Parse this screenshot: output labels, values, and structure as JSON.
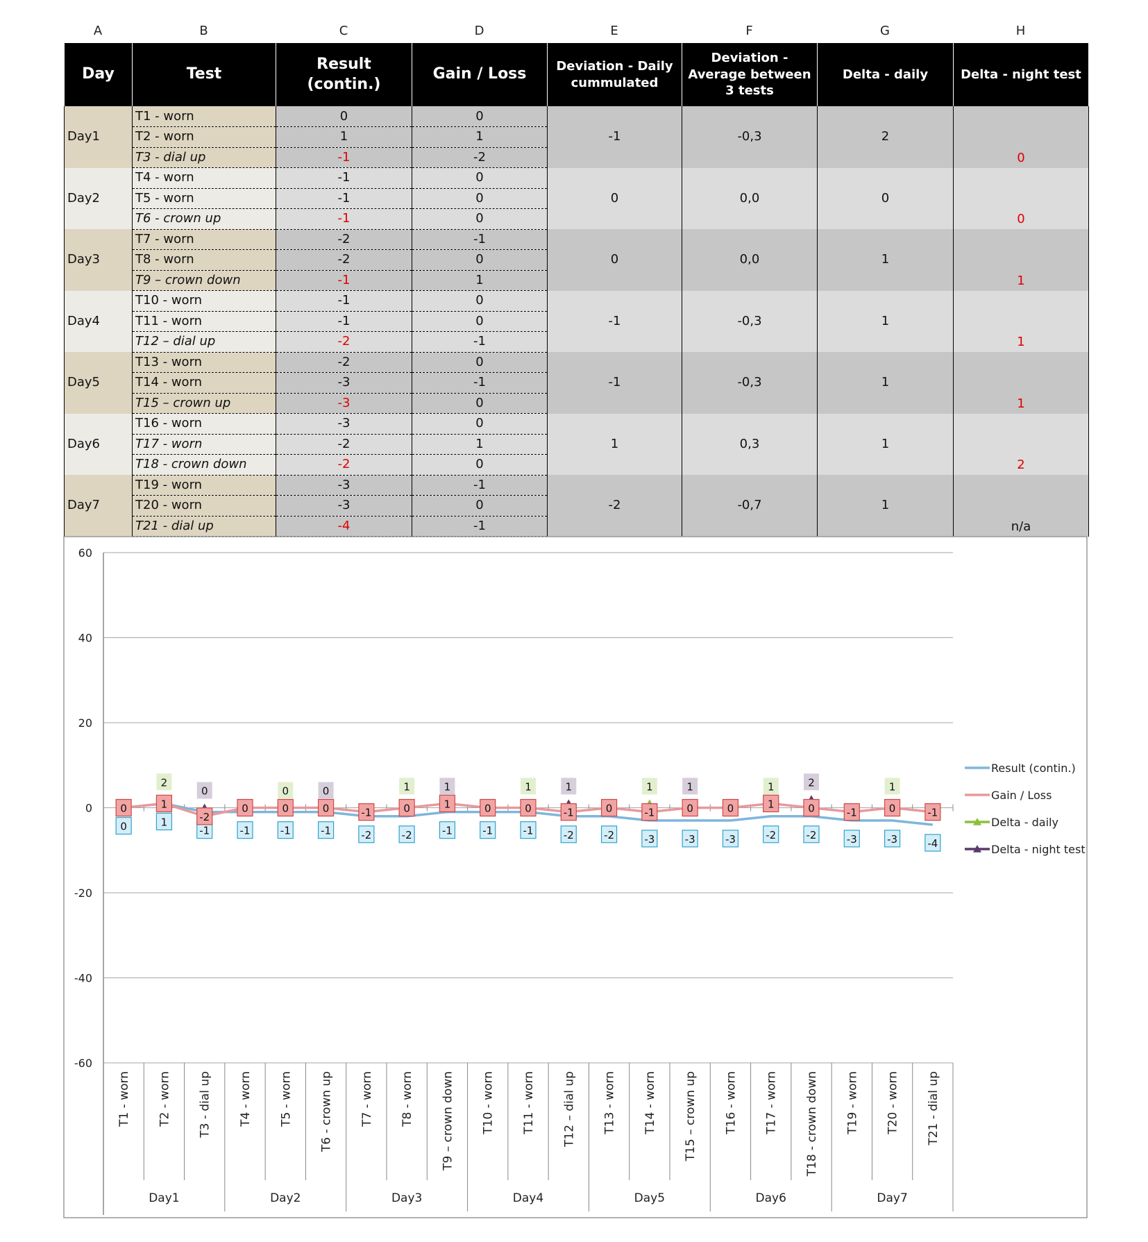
{
  "table": {
    "columns": [
      "A",
      "B",
      "C",
      "D",
      "E",
      "F",
      "G",
      "H"
    ],
    "headers": [
      "Day",
      "Test",
      "Result (contin.)",
      "Gain / Loss",
      "Deviation - Daily cummulated",
      "Deviation - Average between 3 tests",
      "Delta - daily",
      "Delta - night test"
    ],
    "days": [
      {
        "label": "Day1",
        "tests": [
          {
            "name": "T1 - worn",
            "italic": false,
            "result": 0,
            "gain": 0
          },
          {
            "name": "T2 - worn",
            "italic": false,
            "result": 1,
            "gain": 1
          },
          {
            "name": "T3 - dial up",
            "italic": true,
            "result": -1,
            "gain": -2
          }
        ],
        "dev_daily": -1,
        "dev_avg": "-0,3",
        "delta_daily": 2,
        "delta_night": 0
      },
      {
        "label": "Day2",
        "tests": [
          {
            "name": "T4 - worn",
            "italic": false,
            "result": -1,
            "gain": 0
          },
          {
            "name": "T5 - worn",
            "italic": false,
            "result": -1,
            "gain": 0
          },
          {
            "name": "T6 - crown up",
            "italic": true,
            "result": -1,
            "gain": 0
          }
        ],
        "dev_daily": 0,
        "dev_avg": "0,0",
        "delta_daily": 0,
        "delta_night": 0
      },
      {
        "label": "Day3",
        "tests": [
          {
            "name": "T7 - worn",
            "italic": false,
            "result": -2,
            "gain": -1
          },
          {
            "name": "T8 - worn",
            "italic": false,
            "result": -2,
            "gain": 0
          },
          {
            "name": "T9 – crown down",
            "italic": true,
            "result": -1,
            "gain": 1
          }
        ],
        "dev_daily": 0,
        "dev_avg": "0,0",
        "delta_daily": 1,
        "delta_night": 1
      },
      {
        "label": "Day4",
        "tests": [
          {
            "name": "T10 - worn",
            "italic": false,
            "result": -1,
            "gain": 0
          },
          {
            "name": "T11 - worn",
            "italic": false,
            "result": -1,
            "gain": 0
          },
          {
            "name": "T12 – dial up",
            "italic": true,
            "result": -2,
            "gain": -1
          }
        ],
        "dev_daily": -1,
        "dev_avg": "-0,3",
        "delta_daily": 1,
        "delta_night": 1
      },
      {
        "label": "Day5",
        "tests": [
          {
            "name": "T13 - worn",
            "italic": false,
            "result": -2,
            "gain": 0
          },
          {
            "name": "T14 - worn",
            "italic": false,
            "result": -3,
            "gain": -1
          },
          {
            "name": "T15 – crown up",
            "italic": true,
            "result": -3,
            "gain": 0
          }
        ],
        "dev_daily": -1,
        "dev_avg": "-0,3",
        "delta_daily": 1,
        "delta_night": 1
      },
      {
        "label": "Day6",
        "tests": [
          {
            "name": "T16 - worn",
            "italic": false,
            "result": -3,
            "gain": 0
          },
          {
            "name": "T17 - worn",
            "italic": true,
            "result": -2,
            "gain": 1
          },
          {
            "name": "T18 - crown down",
            "italic": true,
            "result": -2,
            "gain": 0
          }
        ],
        "dev_daily": 1,
        "dev_avg": "0,3",
        "delta_daily": 1,
        "delta_night": 2
      },
      {
        "label": "Day7",
        "tests": [
          {
            "name": "T19 - worn",
            "italic": false,
            "result": -3,
            "gain": -1
          },
          {
            "name": "T20 - worn",
            "italic": false,
            "result": -3,
            "gain": 0
          },
          {
            "name": "T21 - dial up",
            "italic": true,
            "result": -4,
            "gain": -1
          }
        ],
        "dev_daily": -2,
        "dev_avg": "-0,7",
        "delta_daily": 1,
        "delta_night": "n/a"
      }
    ]
  },
  "chart_data": {
    "type": "line",
    "categories": [
      "T1 - worn",
      "T2 - worn",
      "T3 - dial up",
      "T4 - worn",
      "T5 - worn",
      "T6 - crown up",
      "T7 - worn",
      "T8 - worn",
      "T9 – crown down",
      "T10 - worn",
      "T11 - worn",
      "T12 – dial up",
      "T13 - worn",
      "T14 - worn",
      "T15 – crown up",
      "T16 - worn",
      "T17 - worn",
      "T18 - crown down",
      "T19 - worn",
      "T20 - worn",
      "T21 - dial up"
    ],
    "groups": [
      "Day1",
      "Day2",
      "Day3",
      "Day4",
      "Day5",
      "Day6",
      "Day7"
    ],
    "ylim": [
      -60,
      60
    ],
    "yticks": [
      -60,
      -40,
      -20,
      0,
      20,
      40,
      60
    ],
    "grid": true,
    "legend": "right",
    "series": [
      {
        "name": "Result (contin.)",
        "color": "#7eb6dc",
        "marker": "none",
        "label_position": "below",
        "values": [
          0,
          1,
          -1,
          -1,
          -1,
          -1,
          -2,
          -2,
          -1,
          -1,
          -1,
          -2,
          -2,
          -3,
          -3,
          -3,
          -2,
          -2,
          -3,
          -3,
          -4
        ]
      },
      {
        "name": "Gain / Loss",
        "color": "#e8999b",
        "marker": "none",
        "label_position": "center",
        "values": [
          0,
          1,
          -2,
          0,
          0,
          0,
          -1,
          0,
          1,
          0,
          0,
          -1,
          0,
          -1,
          0,
          0,
          1,
          0,
          -1,
          0,
          -1
        ]
      },
      {
        "name": "Delta - daily",
        "color": "#8cbf3f",
        "marker": "triangle",
        "label_position": "above",
        "values": [
          null,
          2,
          null,
          null,
          0,
          null,
          null,
          1,
          null,
          null,
          1,
          null,
          null,
          1,
          null,
          null,
          1,
          null,
          null,
          1,
          null
        ]
      },
      {
        "name": "Delta - night test",
        "color": "#5b3a6b",
        "marker": "triangle",
        "label_position": "above",
        "values": [
          null,
          null,
          0,
          null,
          null,
          0,
          null,
          null,
          1,
          null,
          null,
          1,
          null,
          null,
          1,
          null,
          null,
          2,
          null,
          null,
          null
        ]
      }
    ]
  }
}
